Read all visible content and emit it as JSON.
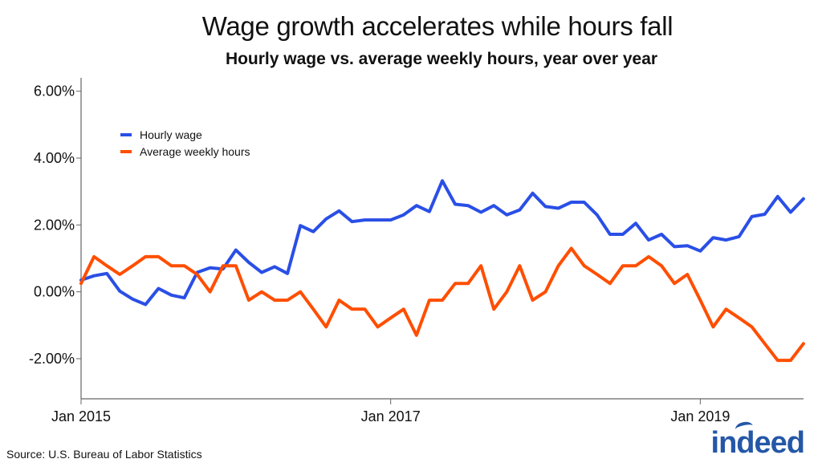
{
  "title": "Wage growth accelerates while hours fall",
  "subtitle": "Hourly wage vs. average weekly hours, year over year",
  "source": "Source: U.S. Bureau of Labor Statistics",
  "logo": "indeed",
  "colors": {
    "hourly_wage": "#2a4fe6",
    "weekly_hours": "#ff4e00",
    "axis": "#666666",
    "logo": "#2557a7"
  },
  "chart_data": {
    "type": "line",
    "x_start": "Jan 2015",
    "x_end": "Aug 2019",
    "xticks": [
      {
        "index": 0,
        "label": "Jan 2015"
      },
      {
        "index": 24,
        "label": "Jan 2017"
      },
      {
        "index": 48,
        "label": "Jan 2019"
      }
    ],
    "yticks": [
      -2,
      0,
      2,
      4,
      6
    ],
    "ytick_labels": [
      "-2.00%",
      "0.00%",
      "2.00%",
      "4.00%",
      "6.00%"
    ],
    "ylim": [
      -3.2,
      6.4
    ],
    "grid": false,
    "legend_position": "top-left",
    "series": [
      {
        "name": "Hourly wage",
        "color_key": "hourly_wage",
        "values": [
          0.35,
          0.48,
          0.55,
          0.02,
          -0.22,
          -0.38,
          0.1,
          -0.1,
          -0.18,
          0.58,
          0.72,
          0.68,
          1.25,
          0.88,
          0.58,
          0.75,
          0.55,
          1.98,
          1.8,
          2.18,
          2.42,
          2.1,
          2.15,
          2.15,
          2.15,
          2.3,
          2.58,
          2.4,
          3.32,
          2.62,
          2.58,
          2.38,
          2.58,
          2.3,
          2.45,
          2.95,
          2.55,
          2.5,
          2.68,
          2.68,
          2.3,
          1.72,
          1.72,
          2.05,
          1.55,
          1.72,
          1.35,
          1.38,
          1.22,
          1.62,
          1.55,
          1.65,
          2.25,
          2.32,
          2.85,
          2.38,
          2.78
        ]
      },
      {
        "name": "Average weekly hours",
        "color_key": "weekly_hours",
        "values": [
          0.25,
          1.05,
          0.78,
          0.52,
          0.78,
          1.05,
          1.05,
          0.78,
          0.78,
          0.52,
          0.0,
          0.78,
          0.78,
          -0.25,
          0.0,
          -0.25,
          -0.25,
          0.0,
          -0.52,
          -1.05,
          -0.25,
          -0.52,
          -0.52,
          -1.05,
          -0.78,
          -0.52,
          -1.3,
          -0.25,
          -0.25,
          0.25,
          0.25,
          0.78,
          -0.52,
          0.0,
          0.78,
          -0.25,
          0.0,
          0.78,
          1.3,
          0.78,
          0.52,
          0.25,
          0.78,
          0.78,
          1.05,
          0.78,
          0.25,
          0.52,
          -0.25,
          -1.05,
          -0.52,
          -0.78,
          -1.05,
          -1.55,
          -2.05,
          -2.05,
          -1.55
        ]
      }
    ]
  }
}
